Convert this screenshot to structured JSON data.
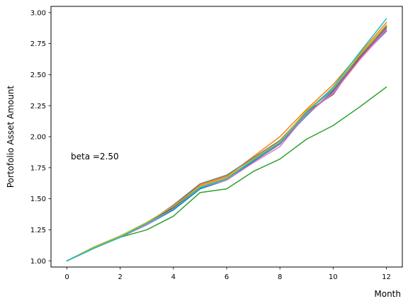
{
  "chart_data": {
    "type": "line",
    "title": "",
    "xlabel": "Month",
    "ylabel": "Portofolio Asset Amount",
    "annotation": "beta =2.50",
    "xlim": [
      -0.6,
      12.6
    ],
    "ylim": [
      0.95,
      3.05
    ],
    "xticks": [
      0,
      2,
      4,
      6,
      8,
      10,
      12
    ],
    "yticks": [
      1.0,
      1.25,
      1.5,
      1.75,
      2.0,
      2.25,
      2.5,
      2.75,
      3.0
    ],
    "ytick_labels": [
      "1.00",
      "1.25",
      "1.50",
      "1.75",
      "2.00",
      "2.25",
      "2.50",
      "2.75",
      "3.00"
    ],
    "grid": false,
    "x": [
      0,
      1,
      2,
      3,
      4,
      5,
      6,
      7,
      8,
      9,
      10,
      11,
      12
    ],
    "series": [
      {
        "color": "#1f77b4",
        "values": [
          1.0,
          1.1,
          1.19,
          1.29,
          1.41,
          1.58,
          1.65,
          1.8,
          1.94,
          2.17,
          2.37,
          2.63,
          2.85
        ]
      },
      {
        "color": "#ff7f0e",
        "values": [
          1.0,
          1.11,
          1.2,
          1.31,
          1.44,
          1.61,
          1.68,
          1.84,
          2.0,
          2.22,
          2.42,
          2.67,
          2.92
        ]
      },
      {
        "color": "#2ca02c",
        "values": [
          1.0,
          1.1,
          1.19,
          1.25,
          1.36,
          1.55,
          1.58,
          1.72,
          1.82,
          1.98,
          2.09,
          2.24,
          2.4
        ]
      },
      {
        "color": "#d62728",
        "values": [
          1.0,
          1.1,
          1.19,
          1.3,
          1.43,
          1.6,
          1.67,
          1.82,
          1.95,
          2.19,
          2.35,
          2.64,
          2.88
        ]
      },
      {
        "color": "#9467bd",
        "values": [
          1.0,
          1.1,
          1.19,
          1.29,
          1.42,
          1.59,
          1.66,
          1.81,
          1.94,
          2.18,
          2.36,
          2.63,
          2.87
        ]
      },
      {
        "color": "#8c564b",
        "values": [
          1.0,
          1.11,
          1.2,
          1.3,
          1.44,
          1.62,
          1.69,
          1.83,
          1.97,
          2.2,
          2.34,
          2.64,
          2.89
        ]
      },
      {
        "color": "#e377c2",
        "values": [
          1.0,
          1.1,
          1.19,
          1.29,
          1.42,
          1.59,
          1.65,
          1.79,
          1.92,
          2.18,
          2.35,
          2.62,
          2.86
        ]
      },
      {
        "color": "#7f7f7f",
        "values": [
          1.0,
          1.1,
          1.2,
          1.3,
          1.45,
          1.62,
          1.69,
          1.83,
          1.97,
          2.2,
          2.38,
          2.65,
          2.88
        ]
      },
      {
        "color": "#bcbd22",
        "values": [
          1.0,
          1.11,
          1.2,
          1.31,
          1.44,
          1.6,
          1.67,
          1.82,
          1.96,
          2.21,
          2.39,
          2.66,
          2.9
        ]
      },
      {
        "color": "#17becf",
        "values": [
          1.0,
          1.1,
          1.19,
          1.3,
          1.42,
          1.59,
          1.66,
          1.81,
          1.95,
          2.19,
          2.4,
          2.68,
          2.95
        ]
      }
    ]
  }
}
